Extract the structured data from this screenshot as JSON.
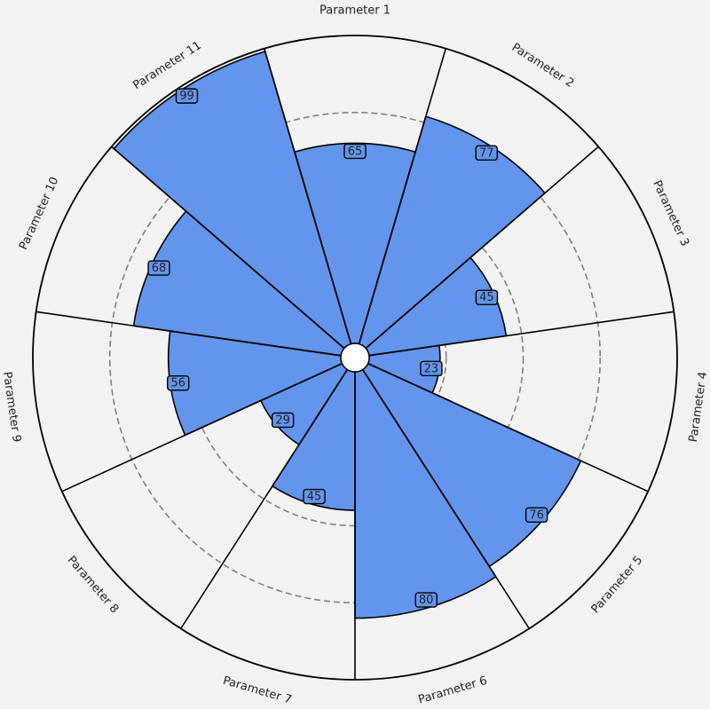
{
  "chart_data": {
    "type": "polar-bar",
    "categories": [
      "Parameter 1",
      "Parameter 2",
      "Parameter 3",
      "Parameter 4",
      "Parameter 5",
      "Parameter 6",
      "Parameter 7",
      "Parameter 8",
      "Parameter 9",
      "Parameter 10",
      "Parameter 11"
    ],
    "values": [
      65,
      77,
      45,
      23,
      76,
      80,
      45,
      29,
      56,
      68,
      99
    ],
    "rmax": 100,
    "gridlines": [
      25,
      50,
      75
    ],
    "grid": true,
    "colors": {
      "background": "#f2f2f2",
      "bar_fill": "#6495ed",
      "bar_edge": "#000000",
      "grid": "#808080",
      "label_box": "#6495ed"
    }
  }
}
